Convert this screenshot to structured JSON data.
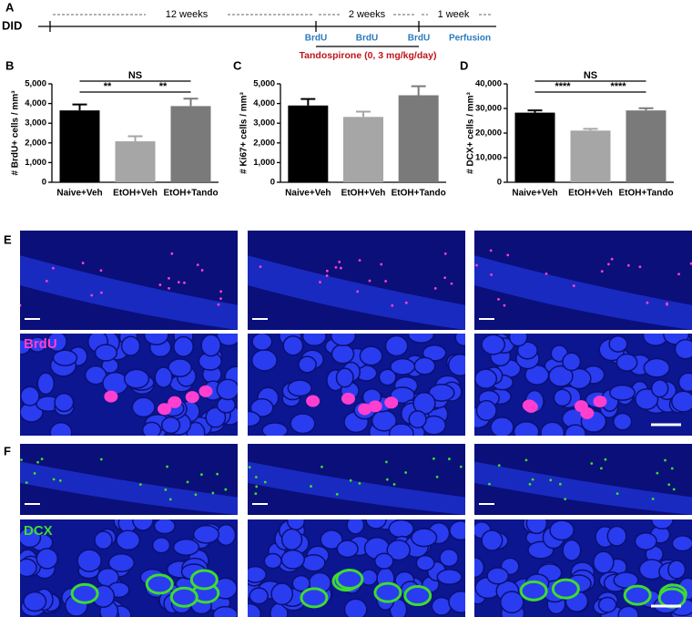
{
  "panels": [
    "A",
    "B",
    "C",
    "D",
    "E",
    "F"
  ],
  "timeline": {
    "label": "DID",
    "periods": [
      "12 weeks",
      "2 weeks",
      "1 week"
    ],
    "events": [
      "BrdU",
      "BrdU",
      "BrdU",
      "Perfusion"
    ],
    "treatment": "Tandospirone (0, 3 mg/kg/day)"
  },
  "stains": [
    "BrdU",
    "DCX"
  ],
  "chart_data": [
    {
      "type": "bar",
      "ylabel": "# BrdU+ cells / mm³",
      "categories": [
        "Naive+Veh",
        "EtOH+Veh",
        "EtOH+Tando"
      ],
      "values": [
        3650,
        2080,
        3870
      ],
      "errors": [
        300,
        260,
        380
      ],
      "colors": [
        "#000000",
        "#a6a6a6",
        "#7a7a7a"
      ],
      "ylim": [
        0,
        5000
      ],
      "yticks": [
        0,
        {
          "value": 1000,
          "label": "1,000"
        },
        {
          "value": 2000,
          "label": "2,000"
        },
        {
          "value": 3000,
          "label": "3,000"
        },
        {
          "value": 4000,
          "label": "4,000"
        },
        {
          "value": 5000,
          "label": "5,000"
        }
      ],
      "annotations": [
        "NS",
        "**",
        "**"
      ]
    },
    {
      "type": "bar",
      "ylabel": "# Ki67+ cells / mm³",
      "categories": [
        "Naive+Veh",
        "EtOH+Veh",
        "EtOH+Tando"
      ],
      "values": [
        3900,
        3320,
        4420
      ],
      "errors": [
        330,
        270,
        460
      ],
      "colors": [
        "#000000",
        "#a6a6a6",
        "#7a7a7a"
      ],
      "ylim": [
        0,
        5000
      ],
      "yticks": [
        0,
        {
          "value": 1000,
          "label": "1,000"
        },
        {
          "value": 2000,
          "label": "2,000"
        },
        {
          "value": 3000,
          "label": "3,000"
        },
        {
          "value": 4000,
          "label": "4,000"
        },
        {
          "value": 5000,
          "label": "5,000"
        }
      ],
      "annotations": []
    },
    {
      "type": "bar",
      "ylabel": "# DCX+ cells / mm³",
      "categories": [
        "Naive+Veh",
        "EtOH+Veh",
        "EtOH+Tando"
      ],
      "values": [
        28300,
        21000,
        29200
      ],
      "errors": [
        900,
        700,
        900
      ],
      "colors": [
        "#000000",
        "#a6a6a6",
        "#7a7a7a"
      ],
      "ylim": [
        0,
        40000
      ],
      "yticks": [
        0,
        {
          "value": 10000,
          "label": "10,000"
        },
        {
          "value": 20000,
          "label": "20,000"
        },
        {
          "value": 30000,
          "label": "30,000"
        },
        {
          "value": 40000,
          "label": "40,000"
        }
      ],
      "annotations": [
        "NS",
        "****",
        "****"
      ]
    }
  ]
}
